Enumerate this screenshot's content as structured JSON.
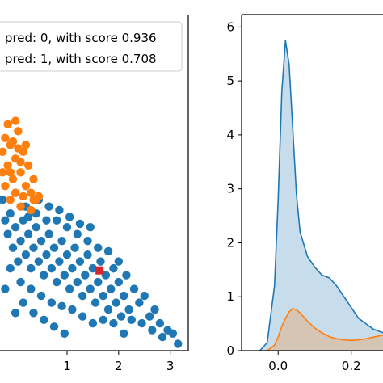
{
  "chart_data": [
    {
      "type": "scatter",
      "legend": {
        "placement": "top-right",
        "entries": [
          "l pred: 0, with score 0.936",
          "l pred: 1, with score 0.708"
        ]
      },
      "xlim": [
        -0.3,
        3.35
      ],
      "ylim": [
        -1.0,
        3.9
      ],
      "xticks": [
        1,
        2,
        3
      ],
      "series": [
        {
          "color": "#1f77b4",
          "points": [
            [
              -0.25,
              1.2
            ],
            [
              -0.2,
              0.9
            ],
            [
              -0.15,
              0.7
            ],
            [
              -0.1,
              1.0
            ],
            [
              -0.05,
              0.5
            ],
            [
              0.0,
              0.8
            ],
            [
              0.05,
              0.3
            ],
            [
              0.1,
              0.6
            ],
            [
              0.15,
              0.9
            ],
            [
              0.2,
              0.4
            ],
            [
              0.25,
              0.7
            ],
            [
              0.3,
              0.2
            ],
            [
              0.35,
              0.5
            ],
            [
              0.4,
              0.8
            ],
            [
              0.45,
              0.3
            ],
            [
              0.5,
              0.6
            ],
            [
              0.55,
              0.1
            ],
            [
              0.6,
              0.4
            ],
            [
              0.65,
              0.7
            ],
            [
              0.7,
              0.2
            ],
            [
              0.75,
              0.5
            ],
            [
              0.8,
              0.0
            ],
            [
              0.85,
              0.3
            ],
            [
              0.9,
              0.6
            ],
            [
              0.95,
              0.1
            ],
            [
              1.0,
              0.4
            ],
            [
              1.05,
              -0.1
            ],
            [
              1.1,
              0.2
            ],
            [
              1.15,
              0.5
            ],
            [
              1.2,
              0.0
            ],
            [
              1.25,
              0.3
            ],
            [
              1.3,
              -0.2
            ],
            [
              1.35,
              0.1
            ],
            [
              1.4,
              0.4
            ],
            [
              1.45,
              -0.1
            ],
            [
              1.5,
              0.2
            ],
            [
              1.55,
              -0.3
            ],
            [
              1.6,
              0.0
            ],
            [
              1.65,
              0.3
            ],
            [
              1.7,
              -0.2
            ],
            [
              1.75,
              0.1
            ],
            [
              1.8,
              -0.4
            ],
            [
              1.85,
              -0.1
            ],
            [
              1.9,
              0.2
            ],
            [
              1.95,
              -0.3
            ],
            [
              2.0,
              0.0
            ],
            [
              2.05,
              -0.5
            ],
            [
              2.1,
              -0.2
            ],
            [
              2.15,
              0.1
            ],
            [
              2.2,
              -0.4
            ],
            [
              2.3,
              -0.1
            ],
            [
              2.4,
              -0.3
            ],
            [
              2.5,
              -0.2
            ],
            [
              2.6,
              -0.5
            ],
            [
              2.7,
              -0.4
            ],
            [
              2.8,
              -0.6
            ],
            [
              2.95,
              -0.7
            ],
            [
              3.05,
              -0.75
            ],
            [
              3.15,
              -0.9
            ],
            [
              0.0,
              1.3
            ],
            [
              0.2,
              1.1
            ],
            [
              0.4,
              1.0
            ],
            [
              0.6,
              0.9
            ],
            [
              0.8,
              0.9
            ],
            [
              1.0,
              0.8
            ],
            [
              1.2,
              0.7
            ],
            [
              1.4,
              0.6
            ],
            [
              1.6,
              0.5
            ],
            [
              1.8,
              0.45
            ],
            [
              2.0,
              0.3
            ],
            [
              -0.1,
              0.2
            ],
            [
              0.1,
              0.0
            ],
            [
              0.3,
              -0.1
            ],
            [
              0.5,
              -0.2
            ],
            [
              0.7,
              -0.3
            ],
            [
              0.9,
              -0.35
            ],
            [
              1.1,
              -0.4
            ],
            [
              1.3,
              -0.5
            ],
            [
              1.5,
              -0.6
            ],
            [
              1.7,
              -0.55
            ],
            [
              0.15,
              -0.3
            ],
            [
              0.35,
              -0.45
            ],
            [
              0.55,
              -0.55
            ],
            [
              0.75,
              -0.65
            ],
            [
              0.95,
              -0.75
            ],
            [
              -0.2,
              -0.1
            ],
            [
              0.0,
              -0.45
            ],
            [
              0.25,
              0.95
            ],
            [
              0.45,
              1.2
            ],
            [
              0.65,
              1.1
            ],
            [
              0.85,
              1.05
            ],
            [
              1.05,
              0.95
            ],
            [
              1.25,
              0.85
            ],
            [
              1.45,
              0.8
            ],
            [
              2.25,
              -0.55
            ],
            [
              2.45,
              -0.6
            ],
            [
              2.65,
              -0.7
            ],
            [
              2.85,
              -0.8
            ],
            [
              1.9,
              -0.6
            ],
            [
              2.1,
              -0.75
            ]
          ]
        },
        {
          "color": "#ff7f0e",
          "points": [
            [
              -0.25,
              1.9
            ],
            [
              -0.2,
              2.1
            ],
            [
              -0.15,
              1.7
            ],
            [
              -0.1,
              2.0
            ],
            [
              -0.05,
              1.5
            ],
            [
              0.0,
              1.8
            ],
            [
              0.05,
              2.2
            ],
            [
              0.1,
              1.6
            ],
            [
              0.15,
              1.9
            ],
            [
              0.2,
              1.4
            ],
            [
              0.25,
              1.7
            ],
            [
              0.3,
              1.3
            ],
            [
              0.35,
              1.5
            ],
            [
              0.4,
              1.2
            ],
            [
              -0.2,
              1.4
            ],
            [
              -0.1,
              1.6
            ],
            [
              0.0,
              1.3
            ],
            [
              0.1,
              1.1
            ],
            [
              -0.15,
              2.3
            ],
            [
              0.05,
              1.95
            ],
            [
              -0.05,
              2.05
            ],
            [
              0.15,
              1.25
            ],
            [
              0.3,
              1.05
            ],
            [
              0.45,
              1.25
            ],
            [
              -0.25,
              1.6
            ],
            [
              0.2,
              2.0
            ],
            [
              0.35,
              1.2
            ],
            [
              0.0,
              2.35
            ],
            [
              -0.1,
              1.2
            ],
            [
              0.1,
              1.75
            ]
          ]
        },
        {
          "color": "#d62728",
          "marker": "square",
          "points": [
            [
              1.63,
              0.17
            ]
          ]
        }
      ]
    },
    {
      "type": "area",
      "xlim": [
        -0.1,
        0.32
      ],
      "ylim": [
        0,
        6.2
      ],
      "xticks": [
        0.0,
        0.2
      ],
      "yticks": [
        0,
        1,
        2,
        3,
        4,
        5,
        6
      ],
      "series": [
        {
          "color": "#1f77b4",
          "x": [
            -0.05,
            -0.03,
            -0.01,
            0.0,
            0.01,
            0.02,
            0.03,
            0.04,
            0.05,
            0.06,
            0.08,
            0.1,
            0.12,
            0.14,
            0.16,
            0.18,
            0.2,
            0.22,
            0.24,
            0.26,
            0.28,
            0.3
          ],
          "y": [
            0.0,
            0.15,
            1.2,
            2.8,
            4.8,
            5.75,
            5.3,
            4.1,
            2.9,
            2.2,
            1.75,
            1.55,
            1.4,
            1.35,
            1.2,
            1.0,
            0.8,
            0.6,
            0.5,
            0.4,
            0.35,
            0.3
          ]
        },
        {
          "color": "#ff7f0e",
          "x": [
            -0.03,
            -0.01,
            0.0,
            0.01,
            0.02,
            0.03,
            0.04,
            0.05,
            0.06,
            0.08,
            0.1,
            0.12,
            0.14,
            0.16,
            0.18,
            0.2,
            0.22,
            0.24,
            0.26,
            0.28,
            0.3
          ],
          "y": [
            0.0,
            0.1,
            0.25,
            0.45,
            0.6,
            0.72,
            0.78,
            0.76,
            0.7,
            0.55,
            0.42,
            0.33,
            0.26,
            0.22,
            0.2,
            0.19,
            0.2,
            0.22,
            0.25,
            0.28,
            0.3
          ]
        }
      ]
    }
  ]
}
